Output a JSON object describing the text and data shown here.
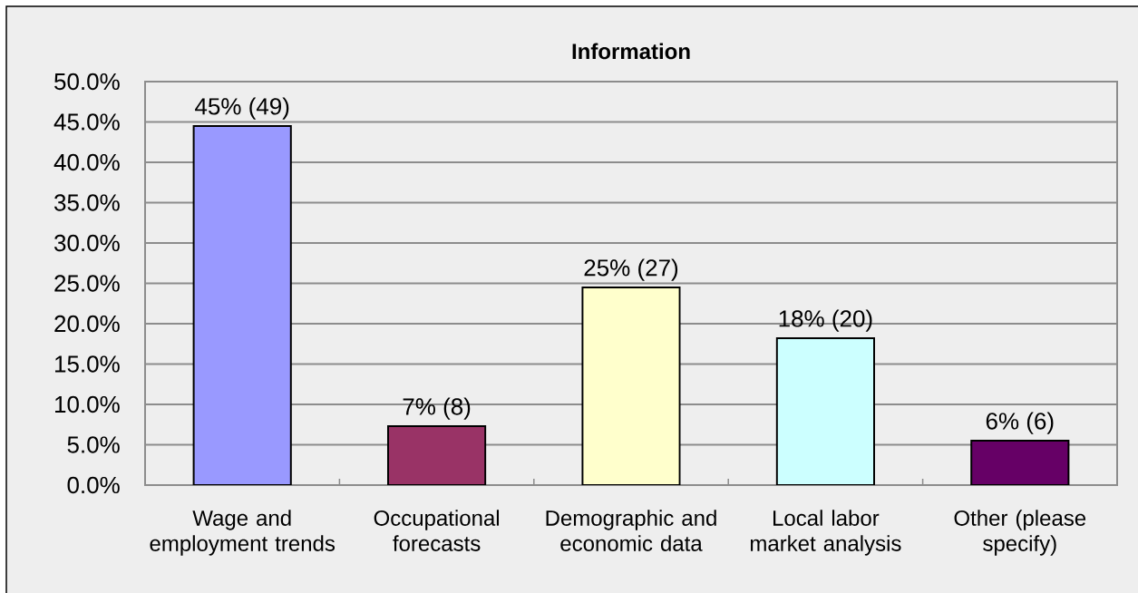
{
  "chart_data": {
    "type": "bar",
    "title": "Information",
    "categories": [
      "Wage and employment trends",
      "Occupational forecasts",
      "Demographic and economic data",
      "Local labor market analysis",
      "Other (please specify)"
    ],
    "values": [
      44.5,
      7.3,
      24.5,
      18.2,
      5.5
    ],
    "colors": [
      "#9999ff",
      "#993366",
      "#ffffcc",
      "#ccffff",
      "#660066"
    ],
    "value_labels": [
      "45% (49)",
      "7% (8)",
      "25% (27)",
      "18% (20)",
      "6% (6)"
    ],
    "ylim": [
      0,
      50
    ],
    "yticks": [
      {
        "value": 0,
        "label": "0.0%"
      },
      {
        "value": 5,
        "label": "5.0%"
      },
      {
        "value": 10,
        "label": "10.0%"
      },
      {
        "value": 15,
        "label": "15.0%"
      },
      {
        "value": 20,
        "label": "20.0%"
      },
      {
        "value": 25,
        "label": "25.0%"
      },
      {
        "value": 30,
        "label": "30.0%"
      },
      {
        "value": 35,
        "label": "35.0%"
      },
      {
        "value": 40,
        "label": "40.0%"
      },
      {
        "value": 45,
        "label": "45.0%"
      },
      {
        "value": 50,
        "label": "50.0%"
      }
    ],
    "grid": "y"
  }
}
